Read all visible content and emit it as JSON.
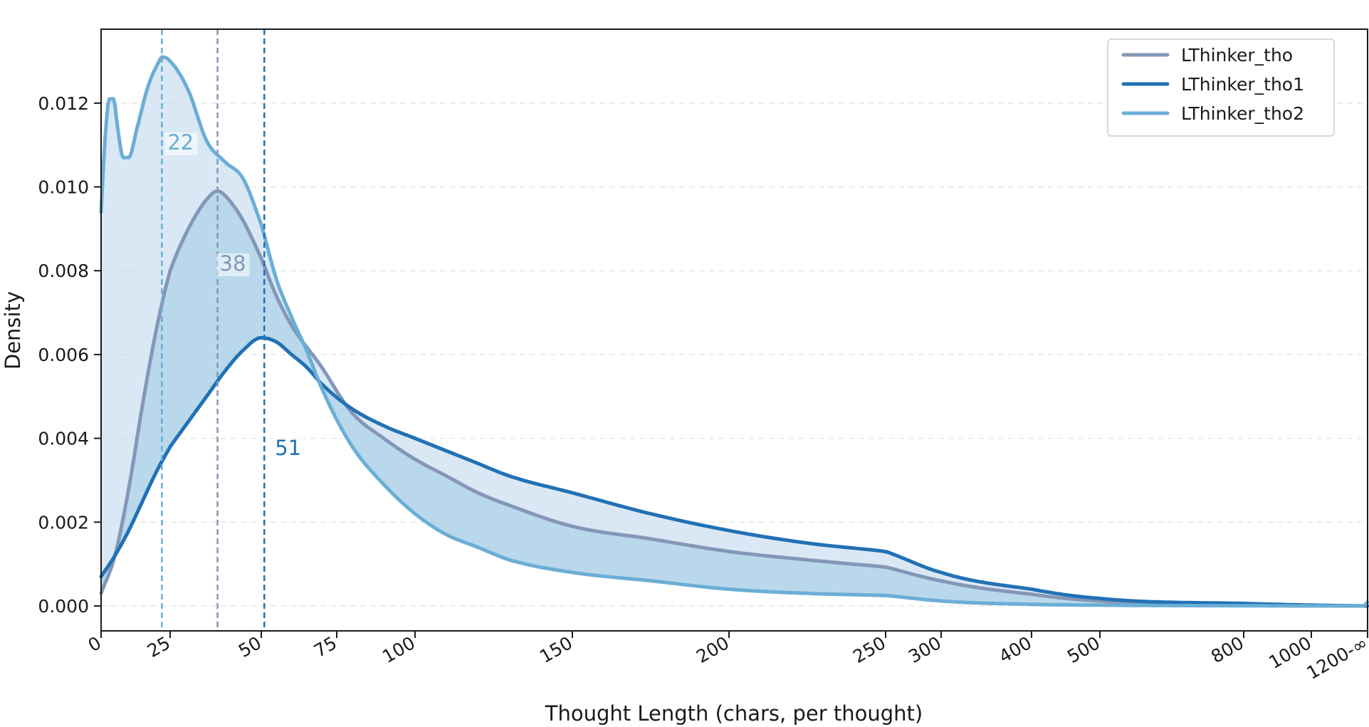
{
  "chart_data": {
    "type": "line",
    "title": "",
    "xlabel": "Thought Length (chars, per thought)",
    "ylabel": "Density",
    "xlim": [
      0,
      1200
    ],
    "ylim": [
      -0.0006,
      0.0138
    ],
    "x_scale": "piecewise",
    "x_ticks": [
      {
        "value": 0,
        "label": "0"
      },
      {
        "value": 25,
        "label": "25"
      },
      {
        "value": 50,
        "label": "50"
      },
      {
        "value": 75,
        "label": "75"
      },
      {
        "value": 100,
        "label": "100"
      },
      {
        "value": 150,
        "label": "150"
      },
      {
        "value": 200,
        "label": "200"
      },
      {
        "value": 250,
        "label": "250"
      },
      {
        "value": 300,
        "label": "300"
      },
      {
        "value": 400,
        "label": "400"
      },
      {
        "value": 500,
        "label": "500"
      },
      {
        "value": 800,
        "label": "800"
      },
      {
        "value": 1000,
        "label": "1000"
      },
      {
        "value": 1200,
        "label": "1200-∞"
      }
    ],
    "y_ticks": [
      0.0,
      0.002,
      0.004,
      0.006,
      0.008,
      0.01,
      0.012
    ],
    "y_tick_labels": [
      "0.000",
      "0.002",
      "0.004",
      "0.006",
      "0.008",
      "0.010",
      "0.012"
    ],
    "grid": "horizontal dashed",
    "legend_position": "top-right",
    "series": [
      {
        "name": "LThinker_tho",
        "color": "#8497b8",
        "median": 38,
        "median_label": "38",
        "points": [
          [
            0,
            0.0003
          ],
          [
            5,
            0.0012
          ],
          [
            10,
            0.0028
          ],
          [
            15,
            0.0048
          ],
          [
            20,
            0.0066
          ],
          [
            25,
            0.008
          ],
          [
            30,
            0.009
          ],
          [
            35,
            0.0097
          ],
          [
            38,
            0.0099
          ],
          [
            40,
            0.0098
          ],
          [
            45,
            0.0092
          ],
          [
            50,
            0.0083
          ],
          [
            55,
            0.0074
          ],
          [
            60,
            0.0067
          ],
          [
            70,
            0.0057
          ],
          [
            80,
            0.0046
          ],
          [
            90,
            0.004
          ],
          [
            100,
            0.0035
          ],
          [
            110,
            0.0031
          ],
          [
            120,
            0.0027
          ],
          [
            130,
            0.0024
          ],
          [
            150,
            0.0019
          ],
          [
            175,
            0.0016
          ],
          [
            200,
            0.0013
          ],
          [
            225,
            0.0011
          ],
          [
            250,
            0.00093
          ],
          [
            300,
            0.0006
          ],
          [
            400,
            0.00028
          ],
          [
            500,
            0.00012
          ],
          [
            800,
            3e-05
          ],
          [
            1000,
            1e-05
          ],
          [
            1200,
            0.0
          ]
        ]
      },
      {
        "name": "LThinker_tho1",
        "color": "#2171b5",
        "median": 51,
        "median_label": "51",
        "points": [
          [
            0,
            0.0007
          ],
          [
            5,
            0.0012
          ],
          [
            10,
            0.0018
          ],
          [
            15,
            0.0025
          ],
          [
            20,
            0.0032
          ],
          [
            25,
            0.0038
          ],
          [
            30,
            0.0044
          ],
          [
            35,
            0.005
          ],
          [
            40,
            0.0056
          ],
          [
            45,
            0.0061
          ],
          [
            50,
            0.0064
          ],
          [
            55,
            0.0063
          ],
          [
            60,
            0.006
          ],
          [
            65,
            0.0057
          ],
          [
            70,
            0.0053
          ],
          [
            80,
            0.0047
          ],
          [
            90,
            0.0043
          ],
          [
            100,
            0.004
          ],
          [
            110,
            0.0037
          ],
          [
            120,
            0.0034
          ],
          [
            130,
            0.0031
          ],
          [
            150,
            0.0027
          ],
          [
            175,
            0.0022
          ],
          [
            200,
            0.0018
          ],
          [
            225,
            0.0015
          ],
          [
            250,
            0.0013
          ],
          [
            300,
            0.0008
          ],
          [
            400,
            0.0004
          ],
          [
            500,
            0.00018
          ],
          [
            800,
            6e-05
          ],
          [
            1000,
            2e-05
          ],
          [
            1200,
            0.0
          ]
        ]
      },
      {
        "name": "LThinker_tho2",
        "color": "#6baed6",
        "median": 22,
        "median_label": "22",
        "points": [
          [
            0,
            0.0094
          ],
          [
            1.5,
            0.0112
          ],
          [
            3,
            0.0121
          ],
          [
            4.5,
            0.0121
          ],
          [
            6,
            0.0114
          ],
          [
            8,
            0.0107
          ],
          [
            10,
            0.0107
          ],
          [
            13,
            0.0114
          ],
          [
            17,
            0.0124
          ],
          [
            21,
            0.013
          ],
          [
            22,
            0.0131
          ],
          [
            25,
            0.013
          ],
          [
            30,
            0.0123
          ],
          [
            35,
            0.0111
          ],
          [
            40,
            0.0106
          ],
          [
            45,
            0.0102
          ],
          [
            50,
            0.0091
          ],
          [
            55,
            0.0078
          ],
          [
            60,
            0.0069
          ],
          [
            65,
            0.0061
          ],
          [
            70,
            0.0052
          ],
          [
            80,
            0.0038
          ],
          [
            90,
            0.0029
          ],
          [
            100,
            0.0022
          ],
          [
            110,
            0.0017
          ],
          [
            120,
            0.0014
          ],
          [
            130,
            0.0011
          ],
          [
            150,
            0.0008
          ],
          [
            175,
            0.0006
          ],
          [
            200,
            0.0004
          ],
          [
            225,
            0.0003
          ],
          [
            250,
            0.00025
          ],
          [
            300,
            0.00012
          ],
          [
            400,
            4e-05
          ],
          [
            500,
            2e-05
          ],
          [
            800,
            5e-06
          ],
          [
            1000,
            0.0
          ],
          [
            1180,
            0.0
          ],
          [
            1195,
            5e-05
          ],
          [
            1200,
            0.0001
          ]
        ]
      }
    ]
  }
}
